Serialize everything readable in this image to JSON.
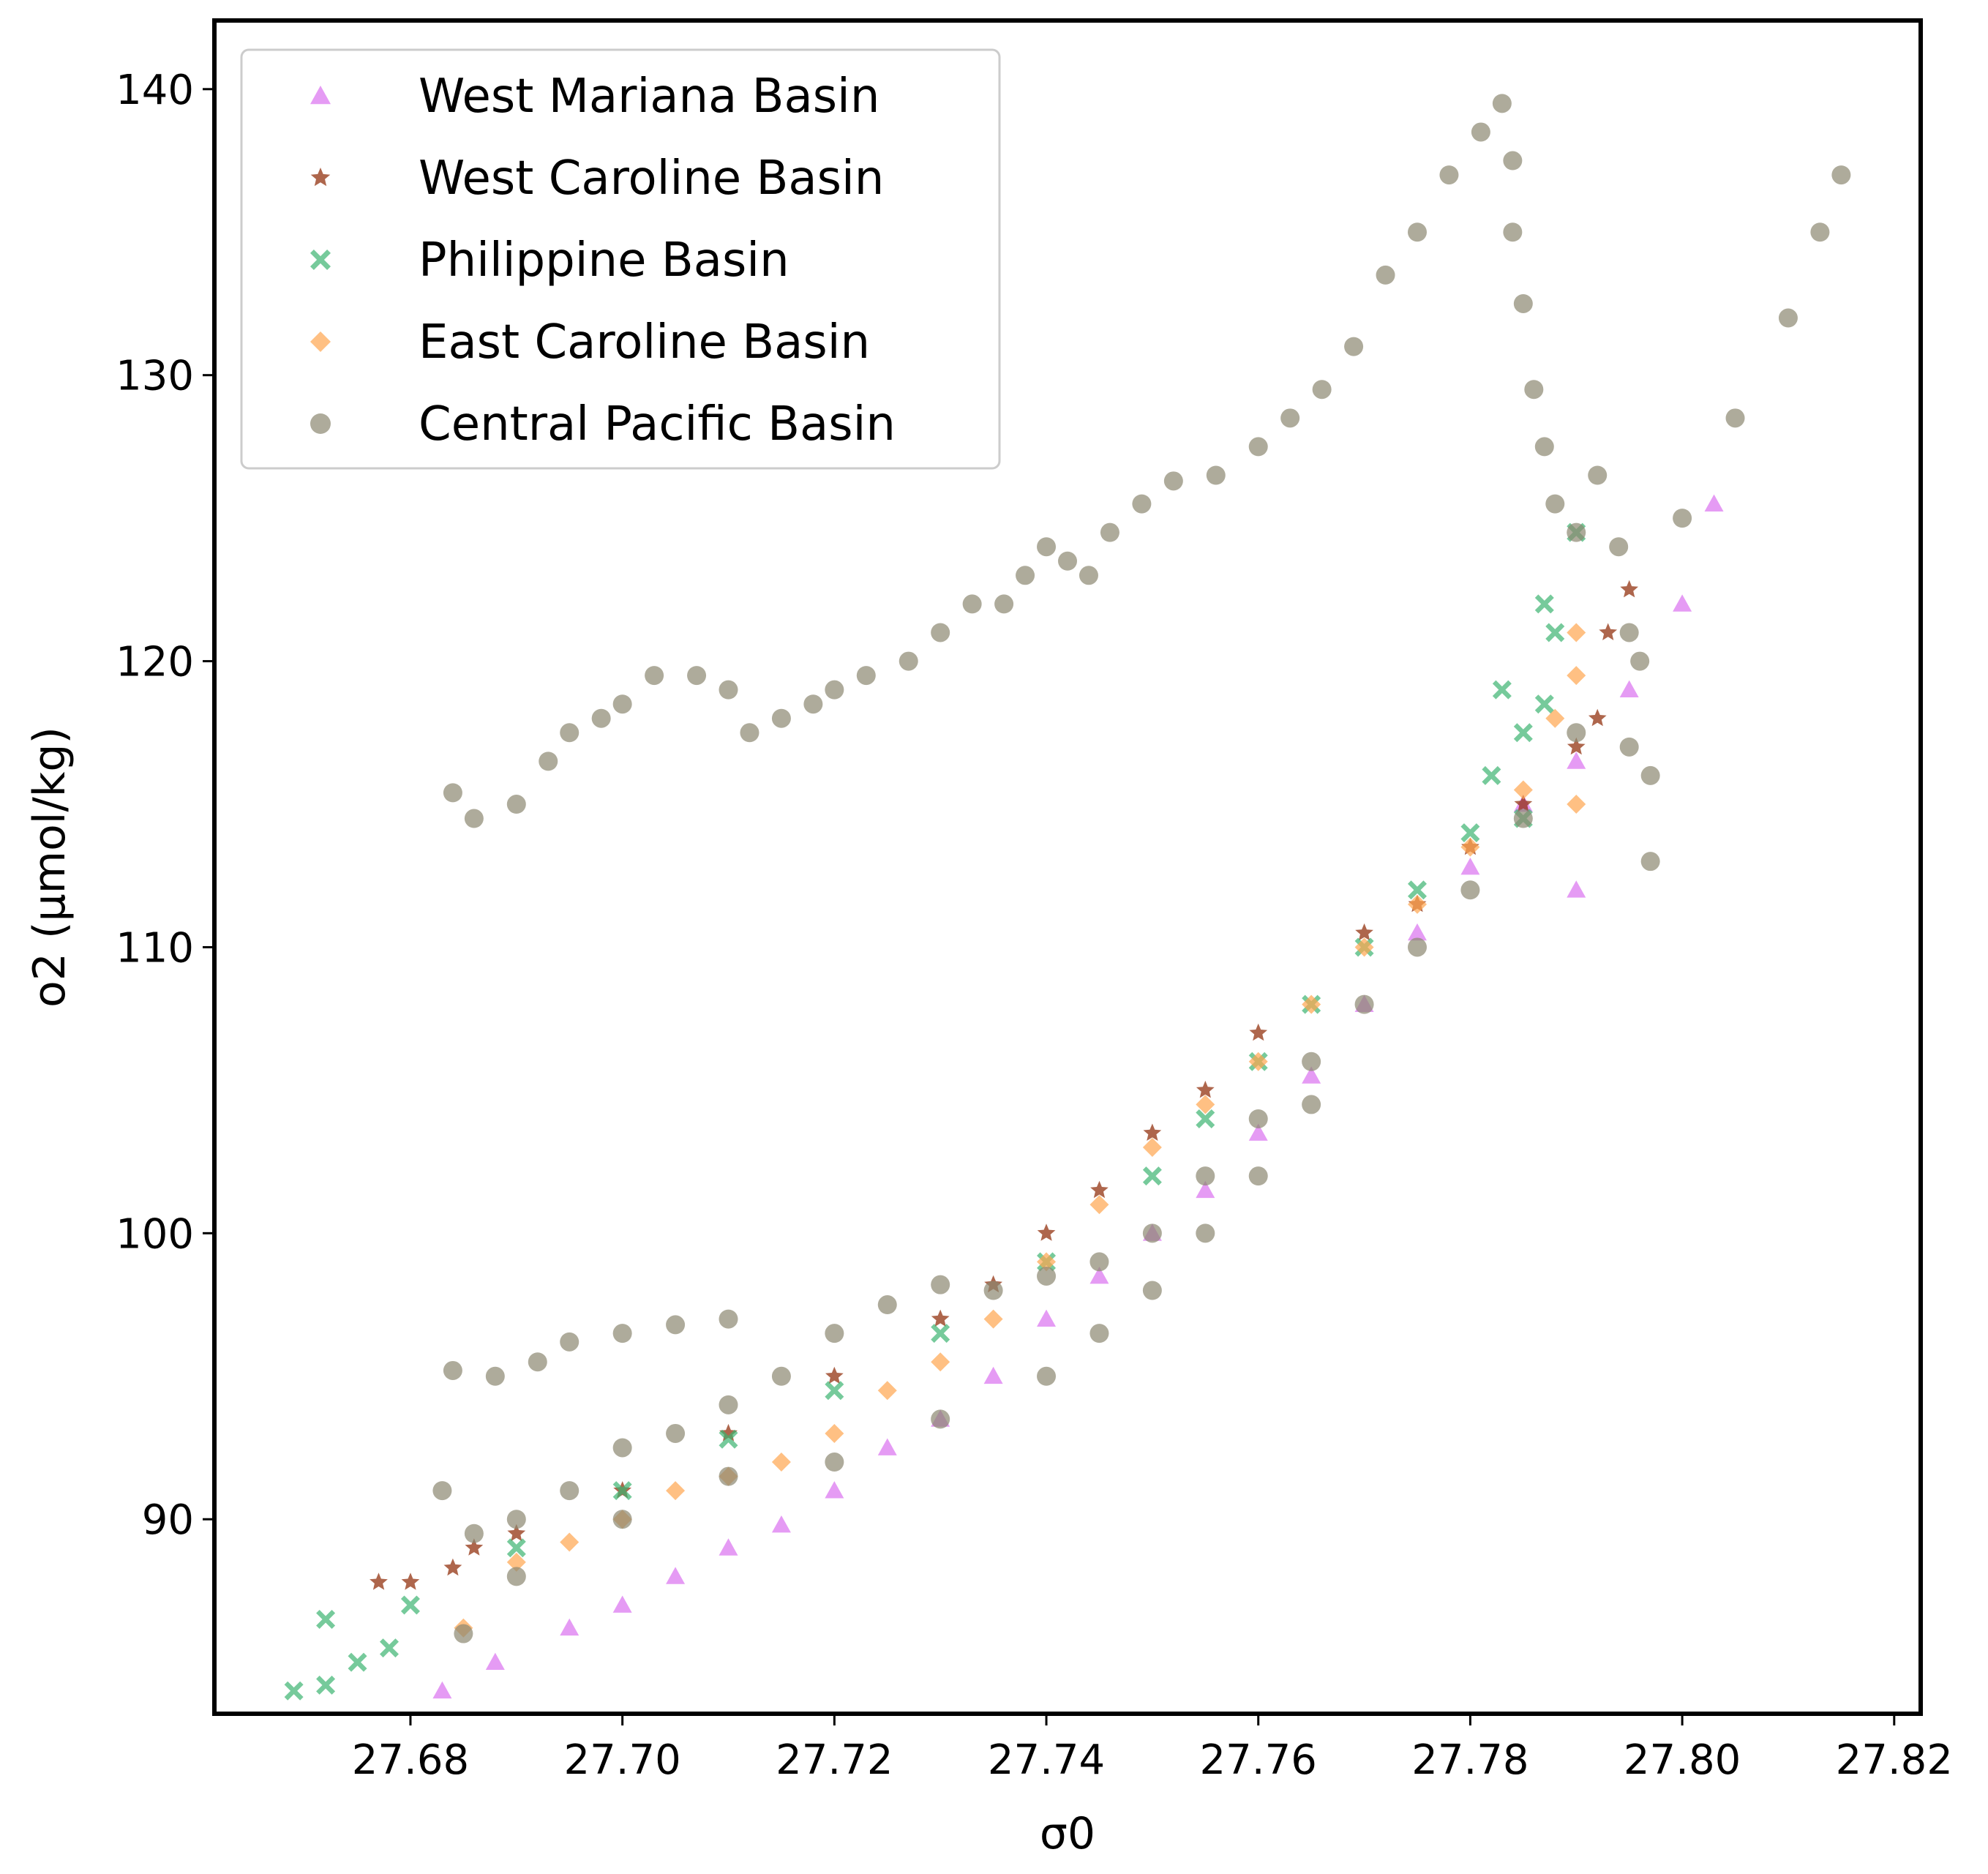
{
  "chart_data": {
    "type": "scatter",
    "title": "",
    "xlabel": "σ0",
    "ylabel": "o2 (µmol/kg)",
    "xlim": [
      27.6615,
      27.8225
    ],
    "ylim": [
      83.2,
      142.4
    ],
    "x_ticks": [
      {
        "value": 27.68,
        "label": "27.68"
      },
      {
        "value": 27.7,
        "label": "27.70"
      },
      {
        "value": 27.72,
        "label": "27.72"
      },
      {
        "value": 27.74,
        "label": "27.74"
      },
      {
        "value": 27.76,
        "label": "27.76"
      },
      {
        "value": 27.78,
        "label": "27.78"
      },
      {
        "value": 27.8,
        "label": "27.80"
      },
      {
        "value": 27.82,
        "label": "27.82"
      }
    ],
    "y_ticks": [
      {
        "value": 90,
        "label": "90"
      },
      {
        "value": 100,
        "label": "100"
      },
      {
        "value": 110,
        "label": "110"
      },
      {
        "value": 120,
        "label": "120"
      },
      {
        "value": 130,
        "label": "130"
      },
      {
        "value": 140,
        "label": "140"
      }
    ],
    "grid": false,
    "legend_position": "top-left",
    "series": [
      {
        "name": "West Mariana Basin",
        "marker": "triangle",
        "color": "#da70f0",
        "points": [
          [
            27.683,
            84.0
          ],
          [
            27.688,
            85.0
          ],
          [
            27.695,
            86.2
          ],
          [
            27.7,
            87.0
          ],
          [
            27.705,
            88.0
          ],
          [
            27.71,
            89.0
          ],
          [
            27.715,
            89.8
          ],
          [
            27.72,
            91.0
          ],
          [
            27.725,
            92.5
          ],
          [
            27.73,
            93.5
          ],
          [
            27.735,
            95.0
          ],
          [
            27.74,
            97.0
          ],
          [
            27.745,
            98.5
          ],
          [
            27.75,
            100.0
          ],
          [
            27.755,
            101.5
          ],
          [
            27.76,
            103.5
          ],
          [
            27.765,
            105.5
          ],
          [
            27.77,
            108.0
          ],
          [
            27.775,
            110.5
          ],
          [
            27.78,
            112.8
          ],
          [
            27.785,
            115.0
          ],
          [
            27.79,
            116.5
          ],
          [
            27.795,
            119.0
          ],
          [
            27.8,
            122.0
          ],
          [
            27.803,
            125.5
          ],
          [
            27.79,
            112.0
          ]
        ]
      },
      {
        "name": "West Caroline Basin",
        "marker": "star",
        "color": "#8b2500",
        "points": [
          [
            27.677,
            87.8
          ],
          [
            27.68,
            87.8
          ],
          [
            27.684,
            88.3
          ],
          [
            27.686,
            89.0
          ],
          [
            27.69,
            89.5
          ],
          [
            27.7,
            91.0
          ],
          [
            27.71,
            93.0
          ],
          [
            27.72,
            95.0
          ],
          [
            27.73,
            97.0
          ],
          [
            27.735,
            98.2
          ],
          [
            27.74,
            100.0
          ],
          [
            27.745,
            101.5
          ],
          [
            27.75,
            103.5
          ],
          [
            27.755,
            105.0
          ],
          [
            27.76,
            107.0
          ],
          [
            27.77,
            110.5
          ],
          [
            27.775,
            111.5
          ],
          [
            27.78,
            113.5
          ],
          [
            27.785,
            115.0
          ],
          [
            27.79,
            117.0
          ],
          [
            27.792,
            118.0
          ],
          [
            27.793,
            121.0
          ],
          [
            27.795,
            122.5
          ]
        ]
      },
      {
        "name": "Philippine Basin",
        "marker": "x",
        "color": "#3cb371",
        "points": [
          [
            27.669,
            84.0
          ],
          [
            27.672,
            84.2
          ],
          [
            27.675,
            85.0
          ],
          [
            27.678,
            85.5
          ],
          [
            27.672,
            86.5
          ],
          [
            27.68,
            87.0
          ],
          [
            27.69,
            89.0
          ],
          [
            27.7,
            91.0
          ],
          [
            27.71,
            92.8
          ],
          [
            27.72,
            94.5
          ],
          [
            27.73,
            96.5
          ],
          [
            27.74,
            99.0
          ],
          [
            27.75,
            102.0
          ],
          [
            27.755,
            104.0
          ],
          [
            27.76,
            106.0
          ],
          [
            27.765,
            108.0
          ],
          [
            27.77,
            110.0
          ],
          [
            27.775,
            112.0
          ],
          [
            27.78,
            114.0
          ],
          [
            27.782,
            116.0
          ],
          [
            27.783,
            119.0
          ],
          [
            27.785,
            117.5
          ],
          [
            27.787,
            122.0
          ],
          [
            27.788,
            121.0
          ],
          [
            27.787,
            118.5
          ],
          [
            27.79,
            124.5
          ],
          [
            27.785,
            114.5
          ]
        ]
      },
      {
        "name": "East Caroline Basin",
        "marker": "diamond",
        "color": "#ffa54f",
        "points": [
          [
            27.685,
            86.2
          ],
          [
            27.69,
            88.5
          ],
          [
            27.695,
            89.2
          ],
          [
            27.7,
            90.0
          ],
          [
            27.705,
            91.0
          ],
          [
            27.71,
            91.5
          ],
          [
            27.715,
            92.0
          ],
          [
            27.72,
            93.0
          ],
          [
            27.725,
            94.5
          ],
          [
            27.73,
            95.5
          ],
          [
            27.735,
            97.0
          ],
          [
            27.74,
            99.0
          ],
          [
            27.745,
            101.0
          ],
          [
            27.75,
            103.0
          ],
          [
            27.755,
            104.5
          ],
          [
            27.76,
            106.0
          ],
          [
            27.765,
            108.0
          ],
          [
            27.77,
            110.0
          ],
          [
            27.775,
            111.5
          ],
          [
            27.78,
            113.5
          ],
          [
            27.785,
            115.5
          ],
          [
            27.788,
            118.0
          ],
          [
            27.79,
            119.5
          ],
          [
            27.79,
            121.0
          ],
          [
            27.79,
            115.0
          ]
        ]
      },
      {
        "name": "Central Pacific Basin",
        "marker": "circle",
        "color": "#8b8770",
        "points": [
          [
            27.684,
            115.4
          ],
          [
            27.686,
            114.5
          ],
          [
            27.69,
            115.0
          ],
          [
            27.693,
            116.5
          ],
          [
            27.695,
            117.5
          ],
          [
            27.698,
            118.0
          ],
          [
            27.7,
            118.5
          ],
          [
            27.703,
            119.5
          ],
          [
            27.707,
            119.5
          ],
          [
            27.71,
            119.0
          ],
          [
            27.712,
            117.5
          ],
          [
            27.715,
            118.0
          ],
          [
            27.718,
            118.5
          ],
          [
            27.72,
            119.0
          ],
          [
            27.723,
            119.5
          ],
          [
            27.727,
            120.0
          ],
          [
            27.73,
            121.0
          ],
          [
            27.733,
            122.0
          ],
          [
            27.736,
            122.0
          ],
          [
            27.738,
            123.0
          ],
          [
            27.74,
            124.0
          ],
          [
            27.742,
            123.5
          ],
          [
            27.744,
            123.0
          ],
          [
            27.746,
            124.5
          ],
          [
            27.749,
            125.5
          ],
          [
            27.752,
            126.3
          ],
          [
            27.756,
            126.5
          ],
          [
            27.76,
            127.5
          ],
          [
            27.763,
            128.5
          ],
          [
            27.766,
            129.5
          ],
          [
            27.769,
            131.0
          ],
          [
            27.772,
            133.5
          ],
          [
            27.775,
            135.0
          ],
          [
            27.778,
            137.0
          ],
          [
            27.781,
            138.5
          ],
          [
            27.783,
            139.5
          ],
          [
            27.784,
            137.5
          ],
          [
            27.784,
            135.0
          ],
          [
            27.785,
            132.5
          ],
          [
            27.786,
            129.5
          ],
          [
            27.787,
            127.5
          ],
          [
            27.788,
            125.5
          ],
          [
            27.79,
            124.5
          ],
          [
            27.794,
            124.0
          ],
          [
            27.796,
            120.0
          ],
          [
            27.797,
            116.0
          ],
          [
            27.797,
            113.0
          ],
          [
            27.795,
            117.0
          ],
          [
            27.792,
            126.5
          ],
          [
            27.684,
            95.2
          ],
          [
            27.688,
            95.0
          ],
          [
            27.692,
            95.5
          ],
          [
            27.695,
            96.2
          ],
          [
            27.7,
            96.5
          ],
          [
            27.705,
            96.8
          ],
          [
            27.71,
            97.0
          ],
          [
            27.683,
            91.0
          ],
          [
            27.686,
            89.5
          ],
          [
            27.69,
            90.0
          ],
          [
            27.695,
            91.0
          ],
          [
            27.7,
            92.5
          ],
          [
            27.705,
            93.0
          ],
          [
            27.71,
            94.0
          ],
          [
            27.715,
            95.0
          ],
          [
            27.72,
            96.5
          ],
          [
            27.725,
            97.5
          ],
          [
            27.73,
            98.2
          ],
          [
            27.735,
            98.0
          ],
          [
            27.74,
            98.5
          ],
          [
            27.745,
            99.0
          ],
          [
            27.75,
            100.0
          ],
          [
            27.755,
            102.0
          ],
          [
            27.76,
            104.0
          ],
          [
            27.765,
            106.0
          ],
          [
            27.77,
            108.0
          ],
          [
            27.775,
            110.0
          ],
          [
            27.78,
            112.0
          ],
          [
            27.785,
            114.5
          ],
          [
            27.79,
            117.5
          ],
          [
            27.795,
            121.0
          ],
          [
            27.8,
            125.0
          ],
          [
            27.805,
            128.5
          ],
          [
            27.81,
            132.0
          ],
          [
            27.813,
            135.0
          ],
          [
            27.815,
            137.0
          ],
          [
            27.685,
            86.0
          ],
          [
            27.69,
            88.0
          ],
          [
            27.7,
            90.0
          ],
          [
            27.71,
            91.5
          ],
          [
            27.72,
            92.0
          ],
          [
            27.73,
            93.5
          ],
          [
            27.74,
            95.0
          ],
          [
            27.745,
            96.5
          ],
          [
            27.75,
            98.0
          ],
          [
            27.755,
            100.0
          ],
          [
            27.76,
            102.0
          ],
          [
            27.765,
            104.5
          ]
        ]
      }
    ]
  }
}
